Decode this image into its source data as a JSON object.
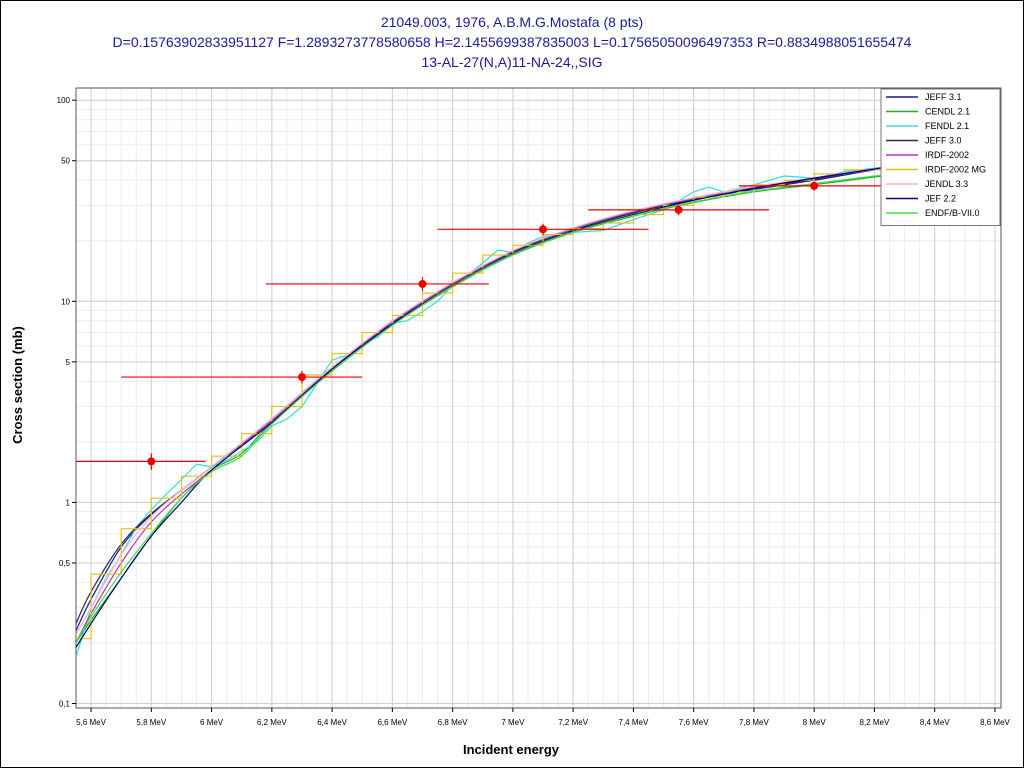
{
  "chart_data": {
    "type": "line",
    "title_lines": [
      "21049.003, 1976, A.B.M.G.Mostafa (8 pts)",
      "D=0.15763902833951127 F=1.2893273778580658 H=2.1455699387835003 L=0.17565050096497353 R=0.8834988051655474",
      "13-AL-27(N,A)11-NA-24,,SIG"
    ],
    "xlabel": "Incident energy",
    "ylabel": "Cross section (mb)",
    "xlim": [
      5.55,
      8.62
    ],
    "ylim": [
      0.095,
      115
    ],
    "yscale": "log",
    "grid": true,
    "legend_position": "top-right",
    "x_ticks": [
      {
        "v": 5.6,
        "label": "5,6 MeV"
      },
      {
        "v": 5.8,
        "label": "5,8 MeV"
      },
      {
        "v": 6.0,
        "label": "6 MeV"
      },
      {
        "v": 6.2,
        "label": "6,2 MeV"
      },
      {
        "v": 6.4,
        "label": "6,4 MeV"
      },
      {
        "v": 6.6,
        "label": "6,6 MeV"
      },
      {
        "v": 6.8,
        "label": "6,8 MeV"
      },
      {
        "v": 7.0,
        "label": "7 MeV"
      },
      {
        "v": 7.2,
        "label": "7,2 MeV"
      },
      {
        "v": 7.4,
        "label": "7,4 MeV"
      },
      {
        "v": 7.6,
        "label": "7,6 MeV"
      },
      {
        "v": 7.8,
        "label": "7,8 MeV"
      },
      {
        "v": 8.0,
        "label": "8 MeV"
      },
      {
        "v": 8.2,
        "label": "8,2 MeV"
      },
      {
        "v": 8.4,
        "label": "8,4 MeV"
      },
      {
        "v": 8.6,
        "label": "8,6 MeV"
      }
    ],
    "y_ticks": [
      {
        "v": 0.1,
        "label": "0,1"
      },
      {
        "v": 0.5,
        "label": "0,5"
      },
      {
        "v": 1,
        "label": "1"
      },
      {
        "v": 5,
        "label": "5"
      },
      {
        "v": 10,
        "label": "10"
      },
      {
        "v": 50,
        "label": "50"
      },
      {
        "v": 100,
        "label": "100"
      }
    ],
    "series": [
      {
        "name": "JEFF 3.1",
        "color": "#1c1c8c",
        "style": "smooth",
        "points": [
          [
            5.55,
            0.23
          ],
          [
            5.6,
            0.33
          ],
          [
            5.7,
            0.6
          ],
          [
            5.8,
            0.87
          ],
          [
            5.9,
            1.15
          ],
          [
            6.0,
            1.5
          ],
          [
            6.2,
            2.55
          ],
          [
            6.4,
            4.6
          ],
          [
            6.6,
            7.8
          ],
          [
            6.8,
            12.2
          ],
          [
            7.0,
            17.5
          ],
          [
            7.2,
            22.5
          ],
          [
            7.4,
            27.5
          ],
          [
            7.6,
            32
          ],
          [
            7.8,
            36
          ],
          [
            8.0,
            40
          ],
          [
            8.2,
            45
          ],
          [
            8.3,
            47
          ]
        ]
      },
      {
        "name": "CENDL 2.1",
        "color": "#22aa22",
        "style": "smooth",
        "points": [
          [
            5.55,
            0.2
          ],
          [
            5.6,
            0.26
          ],
          [
            5.7,
            0.42
          ],
          [
            5.8,
            0.68
          ],
          [
            5.9,
            1.05
          ],
          [
            6.0,
            1.45
          ],
          [
            6.1,
            1.75
          ],
          [
            6.2,
            2.5
          ],
          [
            6.4,
            4.5
          ],
          [
            6.6,
            7.6
          ],
          [
            6.8,
            11.8
          ],
          [
            7.0,
            17
          ],
          [
            7.2,
            22
          ],
          [
            7.4,
            26.5
          ],
          [
            7.6,
            31
          ],
          [
            7.8,
            35
          ],
          [
            8.0,
            38
          ],
          [
            8.2,
            41.5
          ],
          [
            8.3,
            43
          ]
        ]
      },
      {
        "name": "FENDL 2.1",
        "color": "#33dddd",
        "style": "jagged",
        "points": [
          [
            5.55,
            0.17
          ],
          [
            5.6,
            0.3
          ],
          [
            5.65,
            0.42
          ],
          [
            5.7,
            0.55
          ],
          [
            5.75,
            0.75
          ],
          [
            5.8,
            0.92
          ],
          [
            5.85,
            1.1
          ],
          [
            5.9,
            1.3
          ],
          [
            5.95,
            1.55
          ],
          [
            6.0,
            1.5
          ],
          [
            6.05,
            1.62
          ],
          [
            6.1,
            1.8
          ],
          [
            6.15,
            2.0
          ],
          [
            6.2,
            2.4
          ],
          [
            6.25,
            2.6
          ],
          [
            6.3,
            3.0
          ],
          [
            6.35,
            3.9
          ],
          [
            6.4,
            5.1
          ],
          [
            6.45,
            5.4
          ],
          [
            6.5,
            6.2
          ],
          [
            6.55,
            6.6
          ],
          [
            6.6,
            7.8
          ],
          [
            6.65,
            8.0
          ],
          [
            6.7,
            8.9
          ],
          [
            6.75,
            10.0
          ],
          [
            6.8,
            12.0
          ],
          [
            6.85,
            13.5
          ],
          [
            6.9,
            15.5
          ],
          [
            6.95,
            18.0
          ],
          [
            7.0,
            17.5
          ],
          [
            7.05,
            19.5
          ],
          [
            7.1,
            21
          ],
          [
            7.2,
            22
          ],
          [
            7.3,
            22.5
          ],
          [
            7.4,
            25.5
          ],
          [
            7.5,
            28.5
          ],
          [
            7.6,
            35
          ],
          [
            7.65,
            37
          ],
          [
            7.7,
            35
          ],
          [
            7.8,
            38
          ],
          [
            7.9,
            42
          ],
          [
            8.0,
            41
          ],
          [
            8.1,
            44
          ],
          [
            8.2,
            46
          ],
          [
            8.3,
            47
          ]
        ]
      },
      {
        "name": "JEFF 3.0",
        "color": "#2a2a5a",
        "style": "smooth",
        "points": [
          [
            5.55,
            0.25
          ],
          [
            5.6,
            0.36
          ],
          [
            5.7,
            0.62
          ],
          [
            5.8,
            0.88
          ],
          [
            5.9,
            1.15
          ],
          [
            6.0,
            1.5
          ],
          [
            6.2,
            2.6
          ],
          [
            6.4,
            4.7
          ],
          [
            6.6,
            7.9
          ],
          [
            6.8,
            12.2
          ],
          [
            7.0,
            17.6
          ],
          [
            7.2,
            22.6
          ],
          [
            7.4,
            27.6
          ],
          [
            7.6,
            32
          ],
          [
            7.8,
            36.5
          ],
          [
            8.0,
            40.5
          ],
          [
            8.2,
            45.5
          ],
          [
            8.3,
            48
          ]
        ]
      },
      {
        "name": "IRDF-2002",
        "color": "#bb33bb",
        "style": "smooth",
        "points": [
          [
            5.55,
            0.2
          ],
          [
            5.6,
            0.28
          ],
          [
            5.7,
            0.5
          ],
          [
            5.8,
            0.8
          ],
          [
            5.9,
            1.1
          ],
          [
            6.0,
            1.45
          ],
          [
            6.2,
            2.55
          ],
          [
            6.4,
            4.6
          ],
          [
            6.6,
            7.9
          ],
          [
            6.8,
            12.2
          ],
          [
            7.0,
            17.8
          ],
          [
            7.2,
            23
          ],
          [
            7.4,
            28
          ],
          [
            7.6,
            32.5
          ],
          [
            7.8,
            37
          ],
          [
            8.0,
            41
          ],
          [
            8.2,
            45
          ],
          [
            8.3,
            47
          ]
        ]
      },
      {
        "name": "IRDF-2002 MG",
        "color": "#e8c020",
        "style": "step",
        "points": [
          [
            5.55,
            0.21
          ],
          [
            5.6,
            0.21
          ],
          [
            5.6,
            0.44
          ],
          [
            5.7,
            0.44
          ],
          [
            5.7,
            0.74
          ],
          [
            5.8,
            0.74
          ],
          [
            5.8,
            1.05
          ],
          [
            5.9,
            1.05
          ],
          [
            5.9,
            1.35
          ],
          [
            6.0,
            1.35
          ],
          [
            6.0,
            1.7
          ],
          [
            6.1,
            1.7
          ],
          [
            6.1,
            2.2
          ],
          [
            6.2,
            2.2
          ],
          [
            6.2,
            3.0
          ],
          [
            6.3,
            3.0
          ],
          [
            6.3,
            4.3
          ],
          [
            6.4,
            4.3
          ],
          [
            6.4,
            5.5
          ],
          [
            6.5,
            5.5
          ],
          [
            6.5,
            7.0
          ],
          [
            6.6,
            7.0
          ],
          [
            6.6,
            8.5
          ],
          [
            6.7,
            8.5
          ],
          [
            6.7,
            11.0
          ],
          [
            6.8,
            11.0
          ],
          [
            6.8,
            13.8
          ],
          [
            6.9,
            13.8
          ],
          [
            6.9,
            17.0
          ],
          [
            7.0,
            17.0
          ],
          [
            7.0,
            19.0
          ],
          [
            7.1,
            19.0
          ],
          [
            7.1,
            21.5
          ],
          [
            7.2,
            21.5
          ],
          [
            7.2,
            23.0
          ],
          [
            7.3,
            23.0
          ],
          [
            7.3,
            24.5
          ],
          [
            7.4,
            24.5
          ],
          [
            7.4,
            27.0
          ],
          [
            7.5,
            27.0
          ],
          [
            7.5,
            30.0
          ],
          [
            7.6,
            30.0
          ],
          [
            7.6,
            33.0
          ],
          [
            7.7,
            33.0
          ],
          [
            7.7,
            35.0
          ],
          [
            7.8,
            35.0
          ],
          [
            7.8,
            38.0
          ],
          [
            7.9,
            38.0
          ],
          [
            7.9,
            40.0
          ],
          [
            8.0,
            40.0
          ],
          [
            8.0,
            43.0
          ],
          [
            8.1,
            43.0
          ],
          [
            8.1,
            45.0
          ],
          [
            8.3,
            45.0
          ]
        ]
      },
      {
        "name": "JENDL 3.3",
        "color": "#f0b8c8",
        "style": "smooth",
        "points": [
          [
            5.55,
            0.22
          ],
          [
            5.6,
            0.3
          ],
          [
            5.7,
            0.55
          ],
          [
            5.8,
            0.85
          ],
          [
            5.9,
            1.15
          ],
          [
            6.0,
            1.5
          ],
          [
            6.2,
            2.6
          ],
          [
            6.4,
            4.7
          ],
          [
            6.6,
            8.0
          ],
          [
            6.8,
            12.4
          ],
          [
            7.0,
            17.9
          ],
          [
            7.2,
            23.2
          ],
          [
            7.4,
            28.2
          ],
          [
            7.6,
            32.8
          ],
          [
            7.8,
            37.2
          ],
          [
            8.0,
            41.2
          ],
          [
            8.2,
            45.5
          ],
          [
            8.3,
            47.5
          ]
        ]
      },
      {
        "name": "JEF 2.2",
        "color": "#000080",
        "style": "smooth",
        "points": [
          [
            5.55,
            0.19
          ],
          [
            5.6,
            0.25
          ],
          [
            5.7,
            0.42
          ],
          [
            5.8,
            0.68
          ],
          [
            5.9,
            1.0
          ],
          [
            6.0,
            1.45
          ],
          [
            6.2,
            2.5
          ],
          [
            6.4,
            4.6
          ],
          [
            6.6,
            7.7
          ],
          [
            6.8,
            12.0
          ],
          [
            7.0,
            17.2
          ],
          [
            7.2,
            22.2
          ],
          [
            7.4,
            27.0
          ],
          [
            7.6,
            31.8
          ],
          [
            7.8,
            36.5
          ],
          [
            8.0,
            41
          ],
          [
            8.2,
            45.5
          ],
          [
            8.3,
            48
          ]
        ]
      },
      {
        "name": "ENDF/B-VII.0",
        "color": "#44dd44",
        "style": "smooth",
        "points": [
          [
            5.55,
            0.2
          ],
          [
            5.6,
            0.27
          ],
          [
            5.7,
            0.45
          ],
          [
            5.8,
            0.7
          ],
          [
            5.9,
            1.05
          ],
          [
            6.0,
            1.42
          ],
          [
            6.1,
            1.7
          ],
          [
            6.2,
            2.45
          ],
          [
            6.4,
            4.5
          ],
          [
            6.6,
            7.6
          ],
          [
            6.8,
            11.9
          ],
          [
            7.0,
            17.1
          ],
          [
            7.2,
            22.1
          ],
          [
            7.4,
            26.7
          ],
          [
            7.6,
            31.2
          ],
          [
            7.8,
            35.3
          ],
          [
            8.0,
            38.5
          ],
          [
            8.2,
            42
          ],
          [
            8.3,
            43.5
          ]
        ]
      }
    ],
    "experimental": {
      "color": "#ee0000",
      "points": [
        {
          "x": 5.8,
          "y": 1.6,
          "xerr": [
            5.55,
            5.98
          ],
          "yerr": [
            1.45,
            1.75
          ]
        },
        {
          "x": 6.3,
          "y": 4.2,
          "xerr": [
            5.7,
            6.5
          ],
          "yerr": [
            3.9,
            4.5
          ]
        },
        {
          "x": 6.7,
          "y": 12.2,
          "xerr": [
            6.18,
            6.92
          ],
          "yerr": [
            11.2,
            13.2
          ]
        },
        {
          "x": 7.1,
          "y": 22.8,
          "xerr": [
            6.75,
            7.45
          ],
          "yerr": [
            21.3,
            24.3
          ]
        },
        {
          "x": 7.55,
          "y": 28.5,
          "xerr": [
            7.25,
            7.85
          ],
          "yerr": [
            26.8,
            30.2
          ]
        },
        {
          "x": 8.0,
          "y": 37.5,
          "xerr": [
            7.75,
            8.3
          ],
          "yerr": [
            35.5,
            39.5
          ]
        }
      ]
    }
  }
}
